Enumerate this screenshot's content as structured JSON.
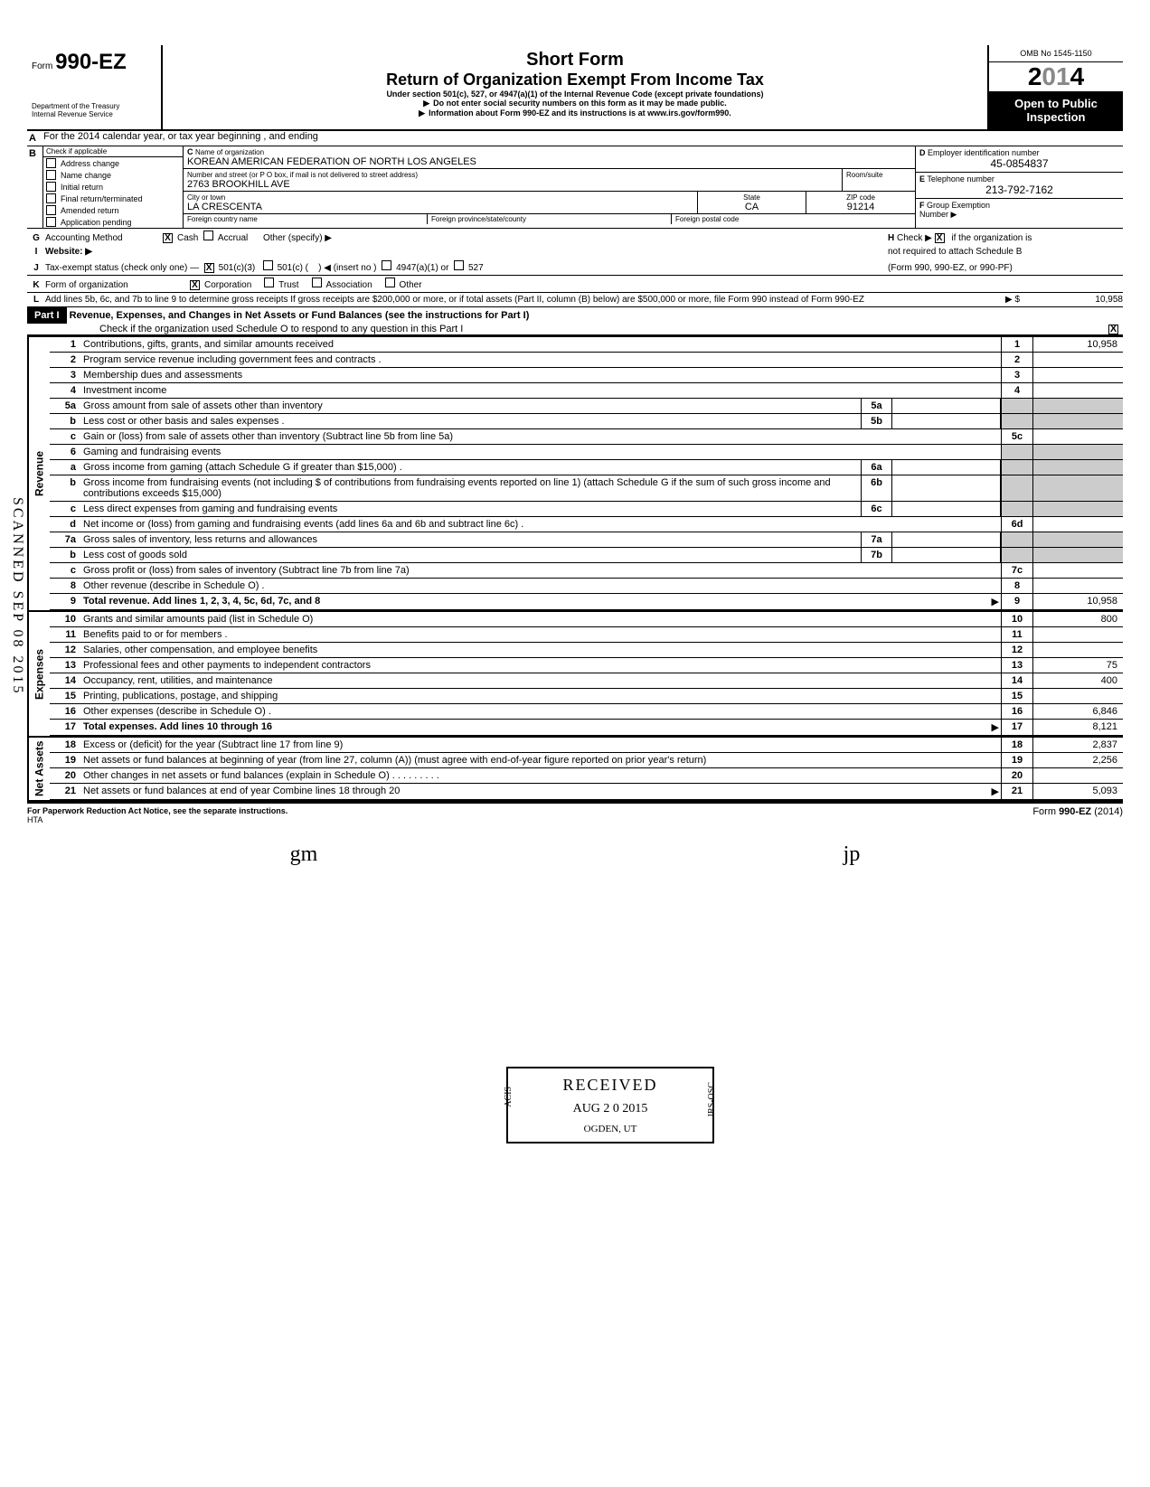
{
  "form": {
    "number": "990-EZ",
    "prefix": "Form",
    "omb": "OMB No  1545-1150",
    "year_full": "2014",
    "year_prefix": "2",
    "year_mid": "01",
    "year_suffix": "4",
    "dept1": "Department of the Treasury",
    "dept2": "Internal Revenue Service",
    "open1": "Open to Public",
    "open2": "Inspection"
  },
  "titles": {
    "main": "Short Form",
    "sub": "Return of Organization Exempt From Income Tax",
    "under": "Under section 501(c), 527, or 4947(a)(1) of the Internal Revenue Code (except private foundations)",
    "ssn": "Do not enter social security numbers on this form as it may be made public.",
    "info": "Information about Form 990-EZ and its instructions is at www.irs.gov/form990."
  },
  "lineA": "For the 2014 calendar year, or tax year beginning                                                              , and ending",
  "lineB": {
    "header": "Check if applicable",
    "items": [
      "Address change",
      "Name change",
      "Initial return",
      "Final return/terminated",
      "Amended return",
      "Application pending"
    ]
  },
  "lineC": {
    "name_label": "Name of organization",
    "name": "KOREAN AMERICAN FEDERATION OF NORTH LOS ANGELES",
    "street_label": "Number and street (or P O  box, if mail is not delivered to street address)",
    "room_label": "Room/suite",
    "street": "2763 BROOKHILL AVE",
    "city_label": "City or town",
    "state_label": "State",
    "zip_label": "ZIP code",
    "city": "LA CRESCENTA",
    "state": "CA",
    "zip": "91214",
    "foreign_country": "Foreign country name",
    "foreign_prov": "Foreign province/state/county",
    "foreign_postal": "Foreign postal code"
  },
  "lineD": {
    "label": "Employer identification number",
    "value": "45-0854837"
  },
  "lineE": {
    "label": "Telephone number",
    "value": "213-792-7162"
  },
  "lineF": {
    "label": "Group Exemption",
    "label2": "Number ▶"
  },
  "lineG": "Accounting Method",
  "lineG_opts": {
    "cash": "Cash",
    "accrual": "Accrual",
    "other": "Other (specify) ▶"
  },
  "lineH": "Check ▶         if the organization is not required to attach Schedule B (Form 990, 990-EZ, or 990-PF)",
  "lineI": "Website: ▶",
  "lineJ": "Tax-exempt status (check only one) —",
  "lineJ_opts": {
    "a": "501(c)(3)",
    "b": "501(c) (",
    "b2": ") ◀  (insert no )",
    "c": "4947(a)(1) or",
    "d": "527"
  },
  "lineK": "Form of organization",
  "lineK_opts": {
    "corp": "Corporation",
    "trust": "Trust",
    "assoc": "Association",
    "other": "Other"
  },
  "lineL": "Add lines 5b, 6c, and 7b to line 9 to determine gross receipts  If gross receipts are $200,000 or more, or if total assets (Part II, column (B) below) are $500,000 or more, file Form 990 instead of Form 990-EZ",
  "lineL_val": "10,958",
  "part1": {
    "label": "Part I",
    "title": "Revenue, Expenses, and Changes in Net Assets or Fund Balances (see the instructions for Part I)",
    "check": "Check if the organization used Schedule O to respond to any question in this Part I"
  },
  "revenue": [
    {
      "n": "1",
      "d": "Contributions, gifts, grants, and similar amounts received",
      "v": "10,958"
    },
    {
      "n": "2",
      "d": "Program service revenue including government fees and contracts .",
      "v": ""
    },
    {
      "n": "3",
      "d": "Membership dues and assessments",
      "v": ""
    },
    {
      "n": "4",
      "d": "Investment income",
      "v": ""
    },
    {
      "n": "5a",
      "d": "Gross amount from sale of assets other than inventory",
      "mn": "5a",
      "mv": ""
    },
    {
      "n": "b",
      "d": "Less  cost or other basis and sales expenses .",
      "mn": "5b",
      "mv": ""
    },
    {
      "n": "c",
      "d": "Gain or (loss) from sale of assets other than inventory (Subtract line 5b from line 5a)",
      "en": "5c",
      "v": ""
    },
    {
      "n": "6",
      "d": "Gaming and fundraising events"
    },
    {
      "n": "a",
      "d": "Gross income from gaming (attach Schedule G if greater than $15,000) .",
      "mn": "6a",
      "mv": ""
    },
    {
      "n": "b",
      "d": "Gross income from fundraising events (not including        $                           of contributions from fundraising events reported on line 1) (attach Schedule G if the sum of such gross income and contributions exceeds $15,000)",
      "mn": "6b",
      "mv": ""
    },
    {
      "n": "c",
      "d": "Less  direct expenses from gaming and fundraising events",
      "mn": "6c",
      "mv": ""
    },
    {
      "n": "d",
      "d": "Net income or (loss) from gaming and fundraising events (add lines 6a and 6b and subtract line 6c) .",
      "en": "6d",
      "v": ""
    },
    {
      "n": "7a",
      "d": "Gross sales of inventory, less returns and allowances",
      "mn": "7a",
      "mv": ""
    },
    {
      "n": "b",
      "d": "Less  cost of goods sold",
      "mn": "7b",
      "mv": ""
    },
    {
      "n": "c",
      "d": "Gross profit or (loss) from sales of inventory (Subtract line 7b from line 7a)",
      "en": "7c",
      "v": ""
    },
    {
      "n": "8",
      "d": "Other revenue (describe in Schedule O) .",
      "en": "8",
      "v": ""
    },
    {
      "n": "9",
      "d": "Total revenue. Add lines 1, 2, 3, 4, 5c, 6d, 7c, and 8",
      "en": "9",
      "v": "10,958",
      "bold": true,
      "arrow": true
    }
  ],
  "expenses": [
    {
      "n": "10",
      "d": "Grants and similar amounts paid (list in Schedule O)",
      "en": "10",
      "v": "800"
    },
    {
      "n": "11",
      "d": "Benefits paid to or for members .",
      "en": "11",
      "v": ""
    },
    {
      "n": "12",
      "d": "Salaries, other compensation, and employee benefits",
      "en": "12",
      "v": ""
    },
    {
      "n": "13",
      "d": "Professional fees and other payments to independent contractors",
      "en": "13",
      "v": "75"
    },
    {
      "n": "14",
      "d": "Occupancy, rent, utilities, and maintenance",
      "en": "14",
      "v": "400"
    },
    {
      "n": "15",
      "d": "Printing, publications, postage, and shipping",
      "en": "15",
      "v": ""
    },
    {
      "n": "16",
      "d": "Other expenses (describe in Schedule O) .",
      "en": "16",
      "v": "6,846"
    },
    {
      "n": "17",
      "d": "Total expenses. Add lines 10 through 16",
      "en": "17",
      "v": "8,121",
      "bold": true,
      "arrow": true
    }
  ],
  "netassets": [
    {
      "n": "18",
      "d": "Excess or (deficit) for the year (Subtract line 17 from line 9)",
      "en": "18",
      "v": "2,837"
    },
    {
      "n": "19",
      "d": "Net assets or fund balances at beginning of year (from line 27, column (A)) (must agree with end-of-year figure reported on prior year's return)",
      "en": "19",
      "v": "2,256"
    },
    {
      "n": "20",
      "d": "Other changes in net assets or fund balances (explain in Schedule O) .  .  .  .  .  .  .  .  .",
      "en": "20",
      "v": ""
    },
    {
      "n": "21",
      "d": "Net assets or fund balances at end of year  Combine lines 18 through 20",
      "en": "21",
      "v": "5,093",
      "arrow": true
    }
  ],
  "sections": {
    "revenue": "Revenue",
    "expenses": "Expenses",
    "netassets": "Net Assets"
  },
  "stamp": {
    "received": "RECEIVED",
    "date": "AUG 2 0 2015",
    "loc": "OGDEN, UT",
    "left": "ACIS",
    "right": "IRS-OSC"
  },
  "scanned": "SCANNED SEP 08 2015",
  "footer": {
    "left": "For Paperwork Reduction Act Notice, see the separate instructions.",
    "hta": "HTA",
    "right": "Form 990-EZ (2014)"
  },
  "sigs": {
    "a": "gm",
    "b": "jp"
  }
}
